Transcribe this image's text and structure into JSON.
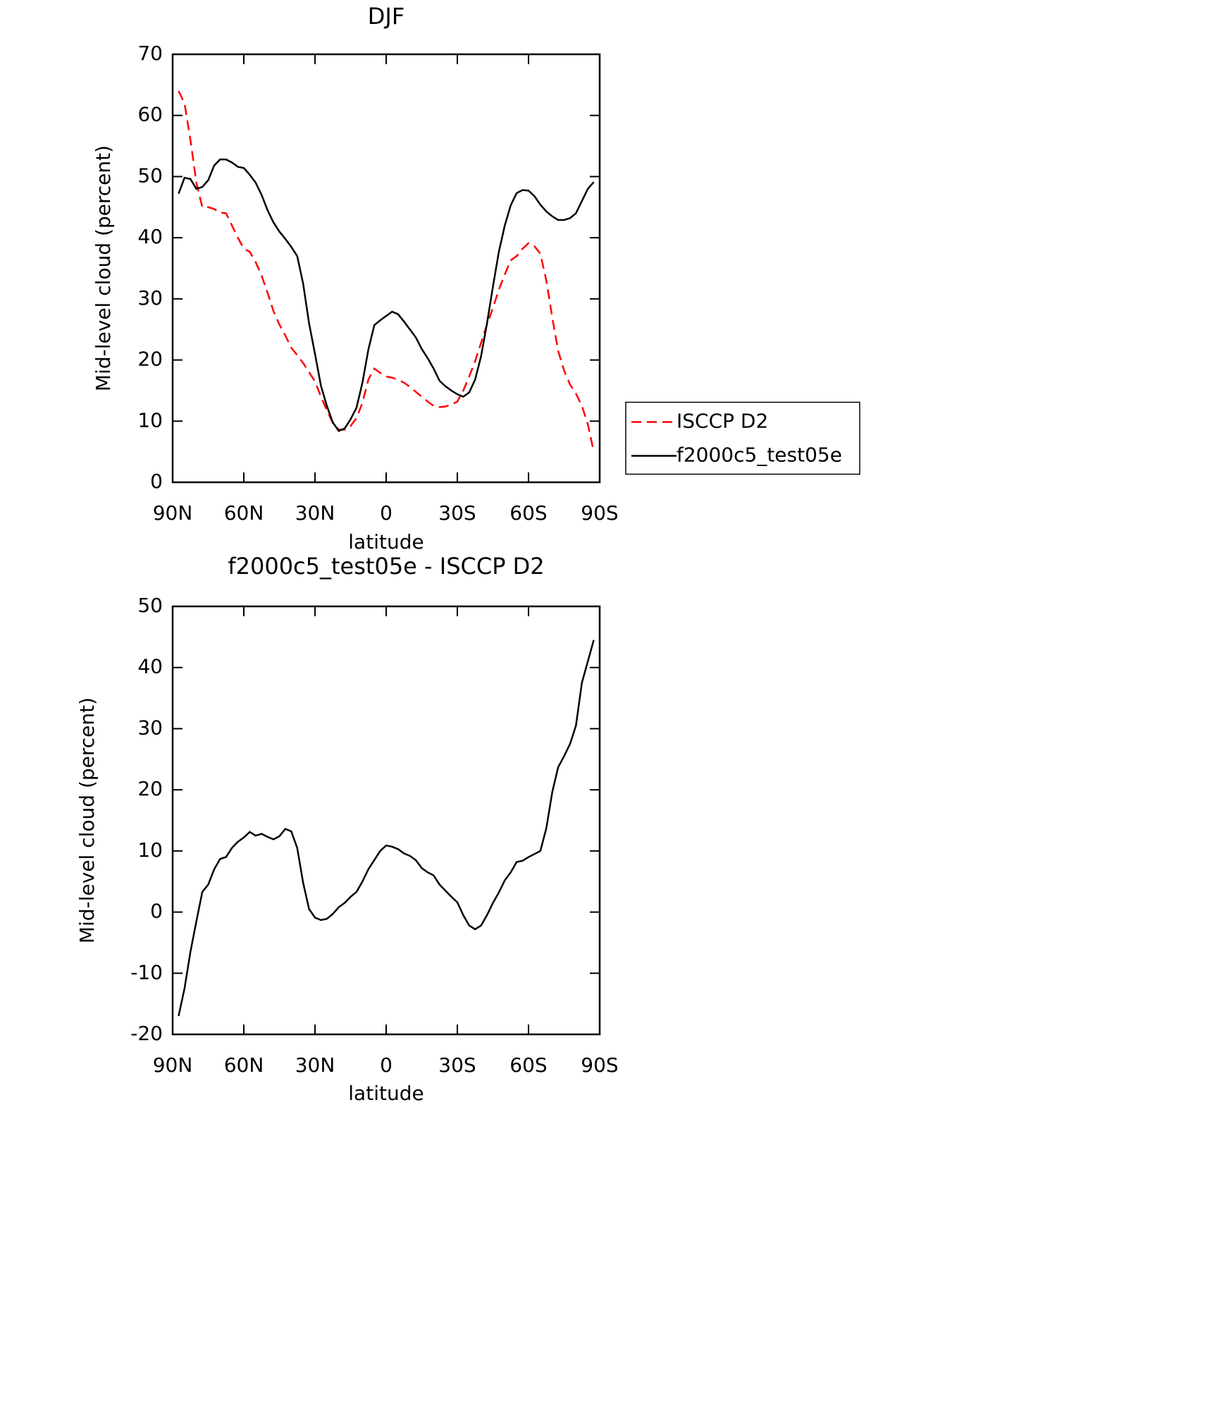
{
  "chart_data": [
    {
      "type": "line",
      "title": "DJF",
      "x_label": "latitude",
      "y_label": "Mid-level cloud (percent)",
      "x": [
        87.5,
        85,
        82.5,
        80,
        77.5,
        75,
        72.5,
        70,
        67.5,
        65,
        62.5,
        60,
        57.5,
        55,
        52.5,
        50,
        47.5,
        45,
        42.5,
        40,
        37.5,
        35,
        32.5,
        30,
        27.5,
        25,
        22.5,
        20,
        17.5,
        15,
        12.5,
        10,
        7.5,
        5,
        2.5,
        0,
        -2.5,
        -5,
        -7.5,
        -10,
        -12.5,
        -15,
        -17.5,
        -20,
        -22.5,
        -25,
        -27.5,
        -30,
        -32.5,
        -35,
        -37.5,
        -40,
        -42.5,
        -45,
        -47.5,
        -50,
        -52.5,
        -55,
        -57.5,
        -60,
        -62.5,
        -65,
        -67.5,
        -70,
        -72.5,
        -75,
        -77.5,
        -80,
        -82.5,
        -85,
        -87.5
      ],
      "series": [
        {
          "name": "ISCCP D2",
          "color": "#ff0000",
          "dash": true,
          "values": [
            64,
            62,
            56,
            49,
            45,
            45,
            44.7,
            44.1,
            44,
            42,
            40,
            38.2,
            37.7,
            36,
            33.8,
            31,
            28,
            25.8,
            24,
            22,
            20.8,
            19.5,
            18,
            16.5,
            14,
            11.8,
            9.7,
            8.6,
            8.6,
            9.2,
            10.5,
            13,
            16.8,
            18.6,
            17.9,
            17.3,
            17.1,
            16.8,
            16.3,
            15.6,
            14.8,
            14,
            13.2,
            12.5,
            12.3,
            12.4,
            12.7,
            13.2,
            15,
            17.3,
            19.8,
            22.8,
            25.8,
            28.5,
            31.5,
            34,
            36.3,
            37,
            38.2,
            39.1,
            38.6,
            37.4,
            33,
            27,
            21.5,
            18.3,
            16,
            14.5,
            12.5,
            9.5,
            5
          ]
        },
        {
          "name": "f2000c5_test05e",
          "color": "#000000",
          "dash": false,
          "values": [
            47.2,
            49.8,
            49.6,
            48,
            48.3,
            49.4,
            51.8,
            52.8,
            52.8,
            52.3,
            51.6,
            51.4,
            50.3,
            49,
            47,
            44.5,
            42.5,
            41,
            39.8,
            38.5,
            37,
            32.5,
            26,
            21,
            15.8,
            12.5,
            9.8,
            8.4,
            8.8,
            10.3,
            12.2,
            16.3,
            21.7,
            25.7,
            26.5,
            27.2,
            27.9,
            27.5,
            26.3,
            25,
            23.7,
            21.8,
            20.3,
            18.6,
            16.6,
            15.7,
            15,
            14.4,
            14,
            14.7,
            16.8,
            20.6,
            26,
            32,
            37.7,
            42,
            45.3,
            47.3,
            47.8,
            47.7,
            46.8,
            45.4,
            44.3,
            43.5,
            42.9,
            42.9,
            43.2,
            44,
            46,
            48,
            49.1
          ]
        }
      ],
      "xlim": [
        90,
        -90
      ],
      "xticks": [
        {
          "value": 90,
          "label": "90N"
        },
        {
          "value": 60,
          "label": "60N"
        },
        {
          "value": 30,
          "label": "30N"
        },
        0,
        {
          "value": -30,
          "label": "30S"
        },
        {
          "value": -60,
          "label": "60S"
        },
        {
          "value": -90,
          "label": "90S"
        }
      ],
      "ylim": [
        0,
        70
      ],
      "yticks": [
        0,
        10,
        20,
        30,
        40,
        50,
        60,
        70
      ],
      "legend": "right"
    },
    {
      "type": "line",
      "title": "f2000c5_test05e - ISCCP D2",
      "x_label": "latitude",
      "y_label": "Mid-level cloud (percent)",
      "x": [
        87.5,
        85,
        82.5,
        80,
        77.5,
        75,
        72.5,
        70,
        67.5,
        65,
        62.5,
        60,
        57.5,
        55,
        52.5,
        50,
        47.5,
        45,
        42.5,
        40,
        37.5,
        35,
        32.5,
        30,
        27.5,
        25,
        22.5,
        20,
        17.5,
        15,
        12.5,
        10,
        7.5,
        5,
        2.5,
        0,
        -2.5,
        -5,
        -7.5,
        -10,
        -12.5,
        -15,
        -17.5,
        -20,
        -22.5,
        -25,
        -27.5,
        -30,
        -32.5,
        -35,
        -37.5,
        -40,
        -42.5,
        -45,
        -47.5,
        -50,
        -52.5,
        -55,
        -57.5,
        -60,
        -62.5,
        -65,
        -67.5,
        -70,
        -72.5,
        -75,
        -77.5,
        -80,
        -82.5,
        -85,
        -87.5
      ],
      "series": [
        {
          "color": "#000000",
          "dash": false,
          "values": [
            -17,
            -12.5,
            -6.5,
            -1.5,
            3.3,
            4.5,
            7,
            8.7,
            9,
            10.5,
            11.5,
            12.2,
            13.1,
            12.5,
            12.8,
            12.3,
            11.9,
            12.4,
            13.6,
            13.2,
            10.5,
            4.8,
            0.5,
            -0.9,
            -1.3,
            -1.1,
            -0.3,
            0.8,
            1.5,
            2.5,
            3.3,
            5,
            7,
            8.5,
            10,
            10.9,
            10.7,
            10.3,
            9.6,
            9.2,
            8.5,
            7.2,
            6.5,
            6,
            4.5,
            3.5,
            2.5,
            1.6,
            -0.5,
            -2.2,
            -2.8,
            -2.2,
            -0.5,
            1.5,
            3.2,
            5.2,
            6.5,
            8.2,
            8.4,
            9,
            9.5,
            10,
            13.7,
            19.6,
            23.7,
            25.5,
            27.5,
            30.5,
            37.5,
            41,
            44.5
          ]
        }
      ],
      "xlim": [
        90,
        -90
      ],
      "xticks": [
        {
          "value": 90,
          "label": "90N"
        },
        {
          "value": 60,
          "label": "60N"
        },
        {
          "value": 30,
          "label": "30N"
        },
        0,
        {
          "value": -30,
          "label": "30S"
        },
        {
          "value": -60,
          "label": "60S"
        },
        {
          "value": -90,
          "label": "90S"
        }
      ],
      "ylim": [
        -20,
        50
      ],
      "yticks": [
        -20,
        -10,
        0,
        10,
        20,
        30,
        40,
        50
      ]
    }
  ]
}
